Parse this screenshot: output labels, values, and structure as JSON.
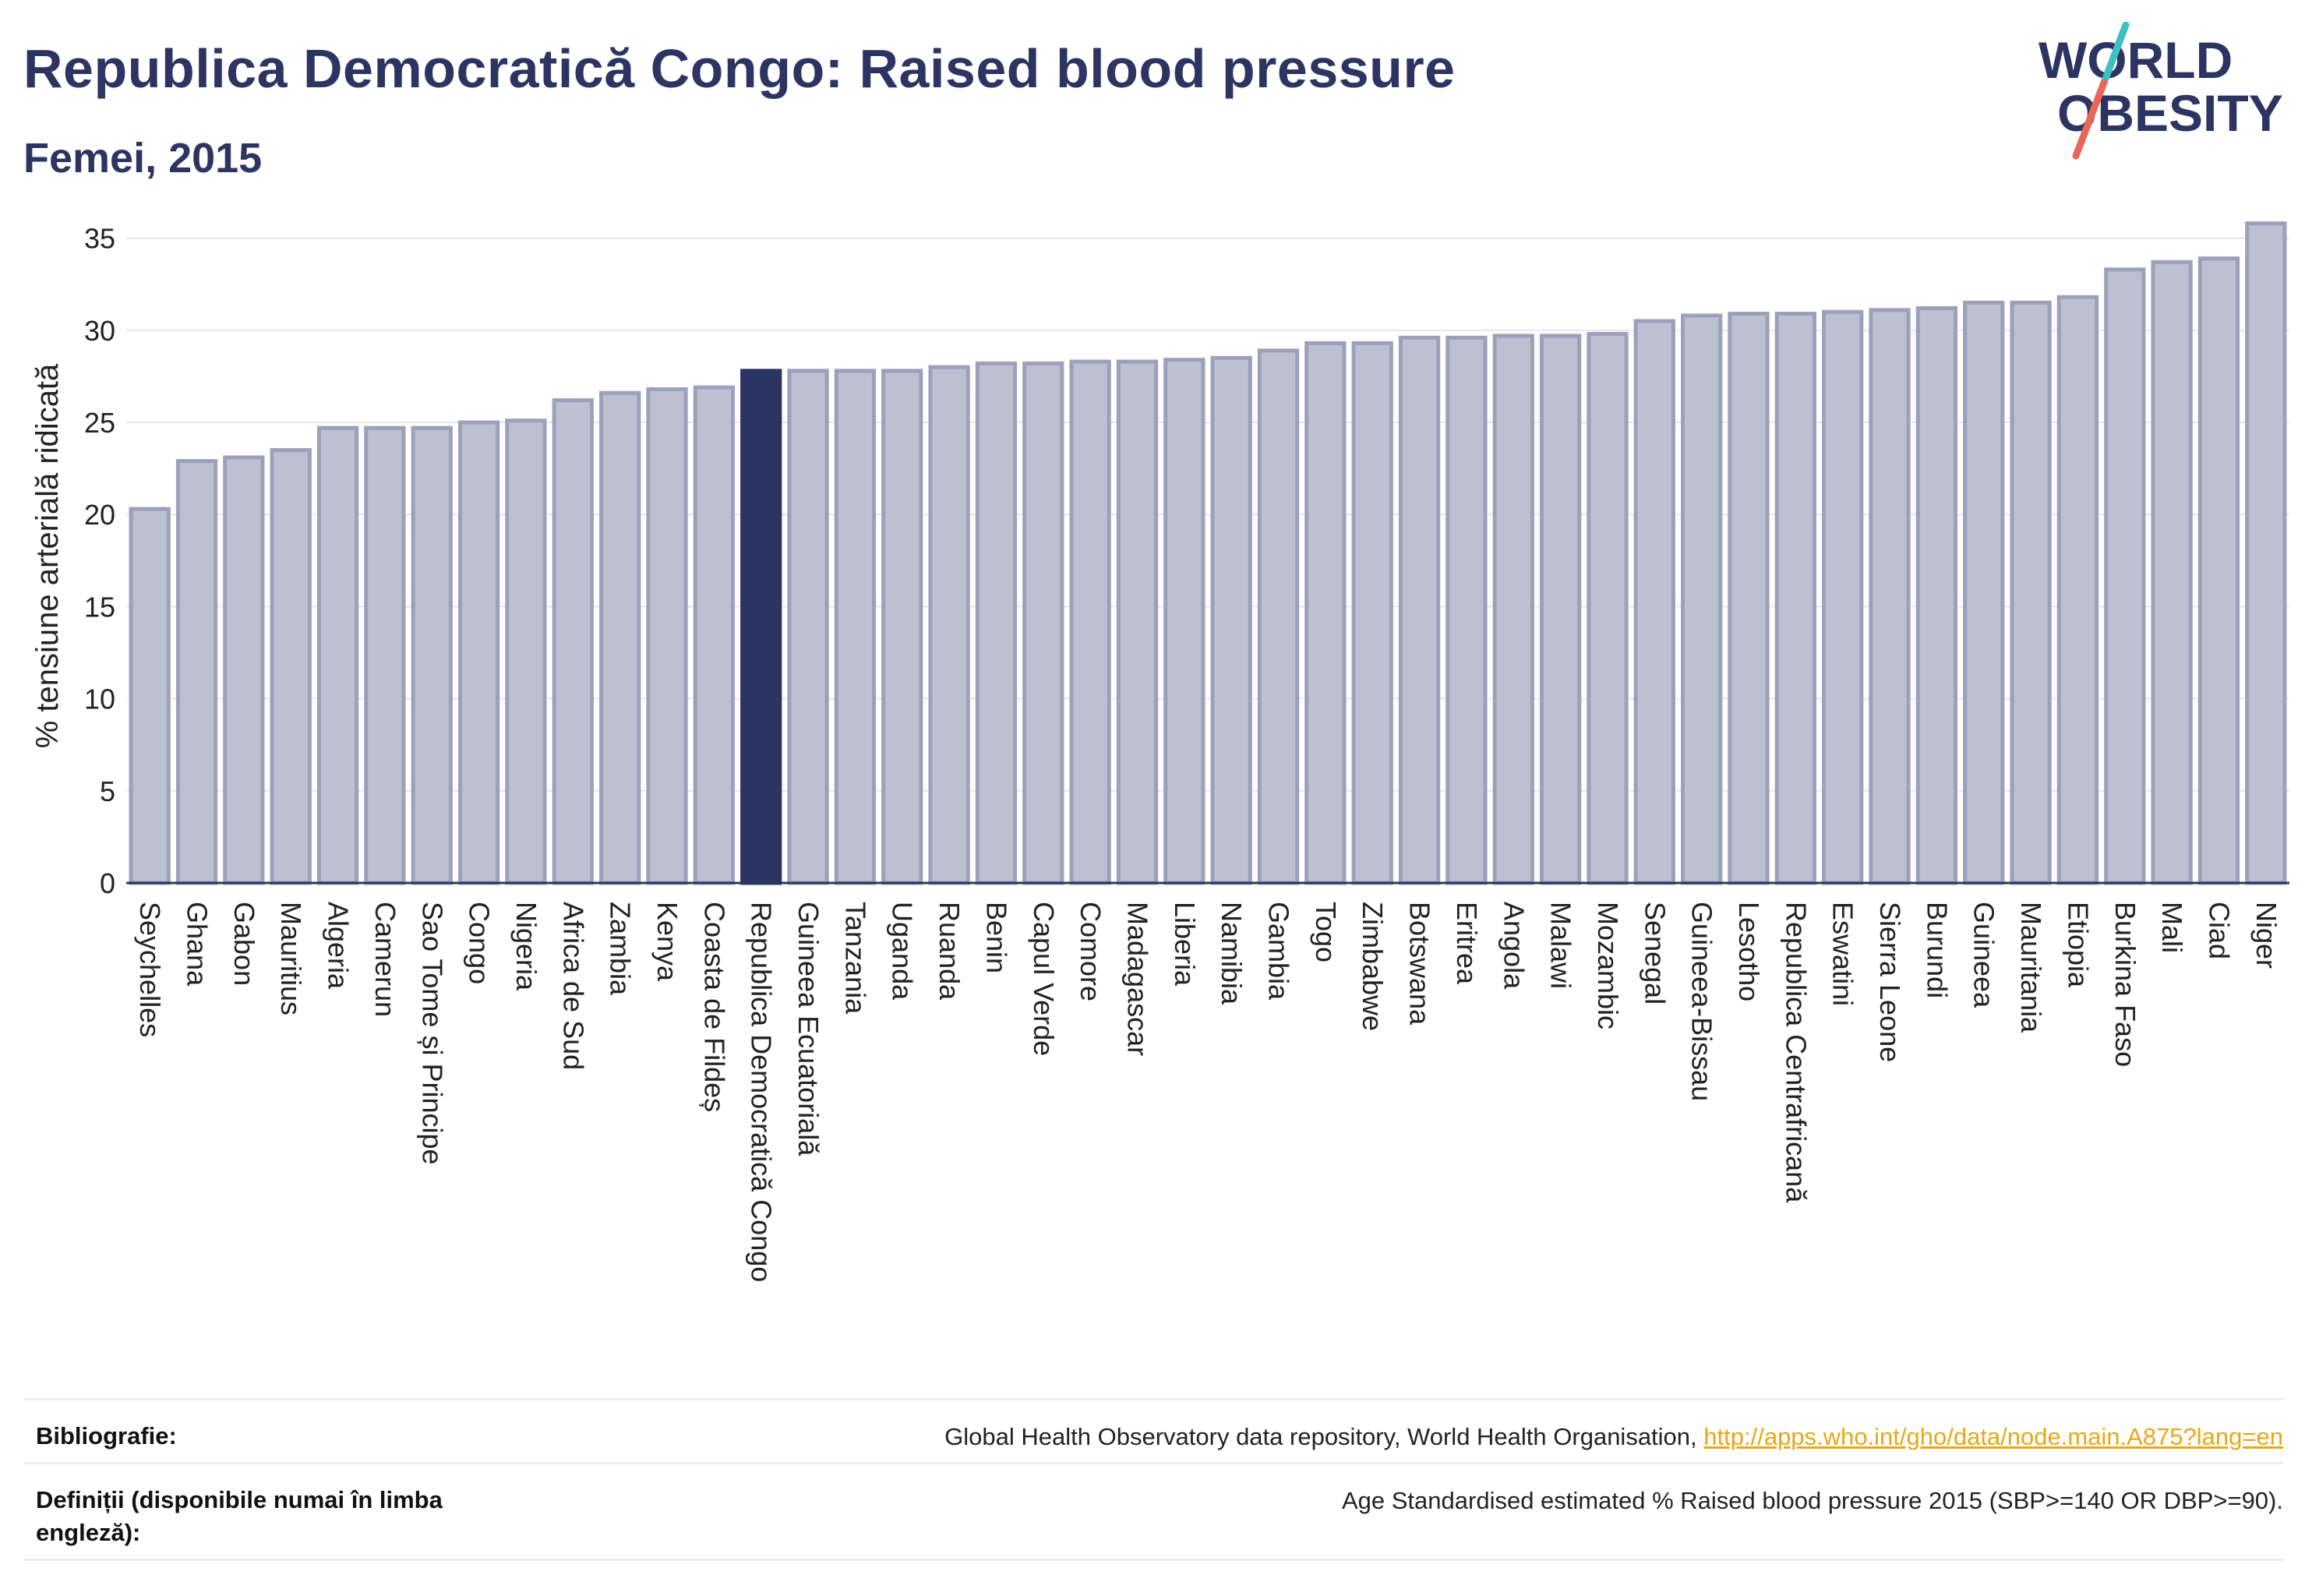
{
  "header": {
    "title": "Republica Democratică Congo: Raised blood pressure",
    "subtitle": "Femei, 2015"
  },
  "logo": {
    "line1": "WORLD",
    "line2": "OBESITY"
  },
  "colors": {
    "bar_default": "#bcc0d0",
    "bar_default_stroke": "#9ba1bb",
    "bar_highlight": "#2c3561",
    "axis": "#2c3561",
    "grid": "#e6e6e6",
    "logo_text": "#2c3561",
    "logo_teal": "#3cc0c2",
    "logo_red": "#e8665a"
  },
  "chart_data": {
    "type": "bar",
    "title": "",
    "xlabel": "",
    "ylabel": "% tensiune arterială ridicată",
    "ylim": [
      0,
      36
    ],
    "yticks": [
      0,
      5,
      10,
      15,
      20,
      25,
      30,
      35
    ],
    "grid": true,
    "highlight": "Republica Democratică Congo",
    "categories": [
      "Seychelles",
      "Ghana",
      "Gabon",
      "Mauritius",
      "Algeria",
      "Camerun",
      "Sao Tome și Principe",
      "Congo",
      "Nigeria",
      "Africa de Sud",
      "Zambia",
      "Kenya",
      "Coasta de Fildeș",
      "Republica Democratică Congo",
      "Guineea Ecuatorială",
      "Tanzania",
      "Uganda",
      "Ruanda",
      "Benin",
      "Capul Verde",
      "Comore",
      "Madagascar",
      "Liberia",
      "Namibia",
      "Gambia",
      "Togo",
      "Zimbabwe",
      "Botswana",
      "Eritrea",
      "Angola",
      "Malawi",
      "Mozambic",
      "Senegal",
      "Guineea-Bissau",
      "Lesotho",
      "Republica Centrafricană",
      "Eswatini",
      "Sierra Leone",
      "Burundi",
      "Guineea",
      "Mauritania",
      "Etiopia",
      "Burkina Faso",
      "Mali",
      "Ciad",
      "Niger"
    ],
    "values": [
      20.3,
      22.9,
      23.1,
      23.5,
      24.7,
      24.7,
      24.7,
      25.0,
      25.1,
      26.2,
      26.6,
      26.8,
      26.9,
      27.8,
      27.8,
      27.8,
      27.8,
      28.0,
      28.2,
      28.2,
      28.3,
      28.3,
      28.4,
      28.5,
      28.9,
      29.3,
      29.3,
      29.6,
      29.6,
      29.7,
      29.7,
      29.8,
      30.5,
      30.8,
      30.9,
      30.9,
      31.0,
      31.1,
      31.2,
      31.5,
      31.5,
      31.8,
      33.3,
      33.7,
      33.9,
      35.8
    ]
  },
  "footer": {
    "bibliography_label": "Bibliografie:",
    "bibliography_text": "Global Health Observatory data repository, World Health Organisation,",
    "bibliography_link": "http://apps.who.int/gho/data/node.main.A875?lang=en",
    "definitions_label": "Definiții (disponibile numai în limba engleză):",
    "definitions_text": "Age Standardised estimated % Raised blood pressure 2015 (SBP>=140 OR DBP>=90)."
  }
}
